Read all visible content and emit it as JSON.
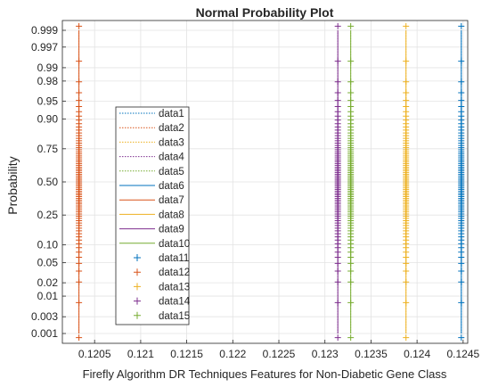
{
  "chart_data": {
    "type": "scatter",
    "title": "Normal Probability Plot",
    "xlabel": "Firefly Algorithm DR Techniques Features for Non-Diabetic Gene Class",
    "ylabel": "Probability",
    "xlim": [
      0.12015,
      0.12455
    ],
    "x_ticks": [
      0.1205,
      0.121,
      0.1215,
      0.122,
      0.1225,
      0.123,
      0.1235,
      0.124,
      0.1245
    ],
    "x_tick_labels": [
      "0.1205",
      "0.121",
      "0.1215",
      "0.122",
      "0.1225",
      "0.123",
      "0.1235",
      "0.124",
      "0.1245"
    ],
    "y_scale": "normal-probability",
    "y_ticks": [
      0.001,
      0.003,
      0.01,
      0.02,
      0.05,
      0.1,
      0.25,
      0.5,
      0.75,
      0.9,
      0.95,
      0.98,
      0.99,
      0.997,
      0.999
    ],
    "y_tick_labels": [
      "0.001",
      "0.003",
      "0.01",
      "0.02",
      "0.05",
      "0.10",
      "0.25",
      "0.50",
      "0.75",
      "0.90",
      "0.95",
      "0.98",
      "0.99",
      "0.997",
      "0.999"
    ],
    "grid": true,
    "legend_position": "center-left",
    "series": [
      {
        "name": "data1",
        "kind": "line",
        "style": "dotted",
        "color": "#0072BD",
        "x": 0.12448
      },
      {
        "name": "data2",
        "kind": "line",
        "style": "dotted",
        "color": "#D95319",
        "x": 0.12033
      },
      {
        "name": "data3",
        "kind": "line",
        "style": "dotted",
        "color": "#EDB120",
        "x": 0.12388
      },
      {
        "name": "data4",
        "kind": "line",
        "style": "dotted",
        "color": "#7E2F8E",
        "x": 0.12314
      },
      {
        "name": "data5",
        "kind": "line",
        "style": "dotted",
        "color": "#77AC30",
        "x": 0.12328
      },
      {
        "name": "data6",
        "kind": "line",
        "style": "solid",
        "color": "#0072BD",
        "x": 0.12448
      },
      {
        "name": "data7",
        "kind": "line",
        "style": "solid",
        "color": "#D95319",
        "x": 0.12033
      },
      {
        "name": "data8",
        "kind": "line",
        "style": "solid",
        "color": "#EDB120",
        "x": 0.12388
      },
      {
        "name": "data9",
        "kind": "line",
        "style": "solid",
        "color": "#7E2F8E",
        "x": 0.12314
      },
      {
        "name": "data10",
        "kind": "line",
        "style": "solid",
        "color": "#77AC30",
        "x": 0.12328
      },
      {
        "name": "data11",
        "kind": "marker",
        "marker": "+",
        "color": "#0072BD",
        "x": 0.12448
      },
      {
        "name": "data12",
        "kind": "marker",
        "marker": "+",
        "color": "#D95319",
        "x": 0.12033
      },
      {
        "name": "data13",
        "kind": "marker",
        "marker": "+",
        "color": "#EDB120",
        "x": 0.12388
      },
      {
        "name": "data14",
        "kind": "marker",
        "marker": "+",
        "color": "#7E2F8E",
        "x": 0.12314
      },
      {
        "name": "data15",
        "kind": "marker",
        "marker": "+",
        "color": "#77AC30",
        "x": 0.12328
      }
    ]
  }
}
